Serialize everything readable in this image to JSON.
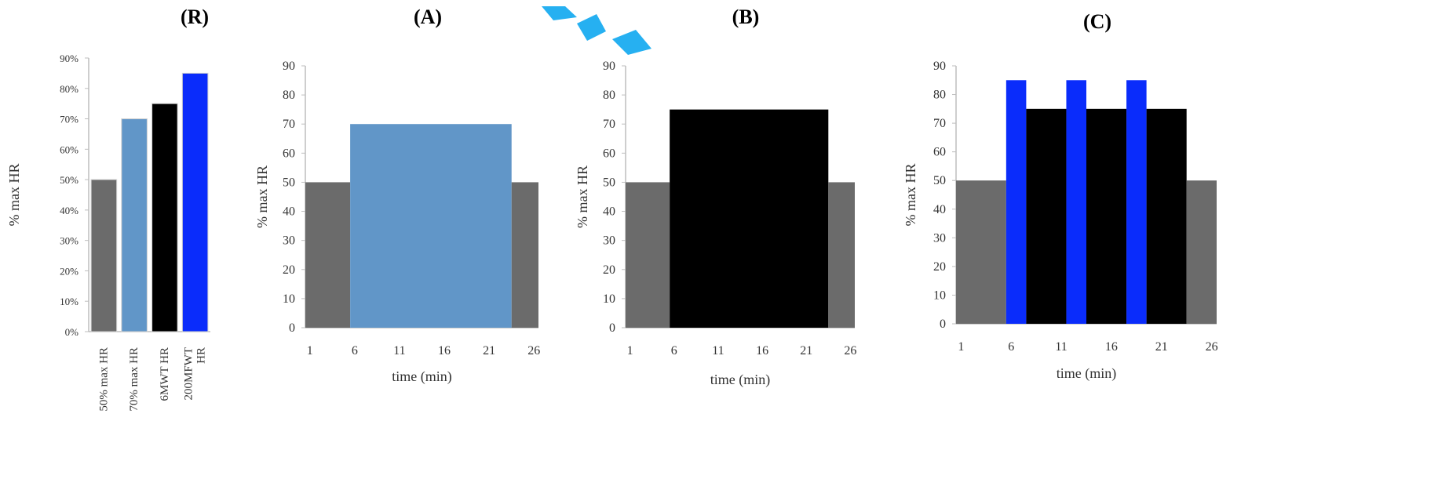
{
  "colors": {
    "gray": "#6b6b6b",
    "lightblue": "#6196c8",
    "black": "#000000",
    "blue": "#0a2cfb",
    "axis": "#bdbdbd",
    "watermark": "#00a2ee"
  },
  "chart_data": [
    {
      "id": "R",
      "type": "bar",
      "title": "(R)",
      "xlabel": "",
      "ylabel": "% max HR",
      "ylim": [
        0,
        90
      ],
      "yticks": [
        "0%",
        "10%",
        "20%",
        "30%",
        "40%",
        "50%",
        "60%",
        "70%",
        "80%",
        "90%"
      ],
      "categories": [
        "50% max HR",
        "70% max HR",
        "6MWT HR",
        "200MFWT HR"
      ],
      "category_lines": [
        [
          "50% max HR"
        ],
        [
          "70% max HR"
        ],
        [
          "6MWT HR"
        ],
        [
          "200MFWT",
          "HR"
        ]
      ],
      "values": [
        50,
        70,
        75,
        85
      ],
      "bar_colors": [
        "gray",
        "lightblue",
        "black",
        "blue"
      ]
    },
    {
      "id": "A",
      "type": "bar",
      "title": "(A)",
      "xlabel": "time (min)",
      "ylabel": "% max HR",
      "ylim": [
        0,
        90
      ],
      "yticks": [
        "0",
        "10",
        "20",
        "30",
        "40",
        "50",
        "60",
        "70",
        "80",
        "90"
      ],
      "xticks": [
        "1",
        "6",
        "11",
        "16",
        "21",
        "26"
      ],
      "x_range": [
        1,
        26
      ],
      "segments": [
        {
          "start": 0.5,
          "end": 5.5,
          "value": 50,
          "color": "gray"
        },
        {
          "start": 5.5,
          "end": 23.5,
          "value": 70,
          "color": "lightblue"
        },
        {
          "start": 23.5,
          "end": 26.5,
          "value": 50,
          "color": "gray"
        }
      ]
    },
    {
      "id": "B",
      "type": "bar",
      "title": "(B)",
      "xlabel": "time (min)",
      "ylabel": "% max HR",
      "ylim": [
        0,
        90
      ],
      "yticks": [
        "0",
        "10",
        "20",
        "30",
        "40",
        "50",
        "60",
        "70",
        "80",
        "90"
      ],
      "xticks": [
        "1",
        "6",
        "11",
        "16",
        "21",
        "26"
      ],
      "x_range": [
        1,
        26
      ],
      "segments": [
        {
          "start": 0.5,
          "end": 5.5,
          "value": 50,
          "color": "gray"
        },
        {
          "start": 5.5,
          "end": 23.5,
          "value": 75,
          "color": "black"
        },
        {
          "start": 23.5,
          "end": 26.5,
          "value": 50,
          "color": "gray"
        }
      ]
    },
    {
      "id": "C",
      "type": "bar",
      "title": "(C)",
      "xlabel": "time (min)",
      "ylabel": "% max HR",
      "ylim": [
        0,
        90
      ],
      "yticks": [
        "0",
        "10",
        "20",
        "30",
        "40",
        "50",
        "60",
        "70",
        "80",
        "90"
      ],
      "xticks": [
        "1",
        "6",
        "11",
        "16",
        "21",
        "26"
      ],
      "x_range": [
        1,
        26
      ],
      "segments": [
        {
          "start": 0.5,
          "end": 5.5,
          "value": 50,
          "color": "gray"
        },
        {
          "start": 5.5,
          "end": 7.5,
          "value": 85,
          "color": "blue"
        },
        {
          "start": 7.5,
          "end": 11.5,
          "value": 75,
          "color": "black"
        },
        {
          "start": 11.5,
          "end": 13.5,
          "value": 85,
          "color": "blue"
        },
        {
          "start": 13.5,
          "end": 17.5,
          "value": 75,
          "color": "black"
        },
        {
          "start": 17.5,
          "end": 19.5,
          "value": 85,
          "color": "blue"
        },
        {
          "start": 19.5,
          "end": 23.5,
          "value": 75,
          "color": "black"
        },
        {
          "start": 23.5,
          "end": 26.5,
          "value": 50,
          "color": "gray"
        }
      ]
    }
  ]
}
